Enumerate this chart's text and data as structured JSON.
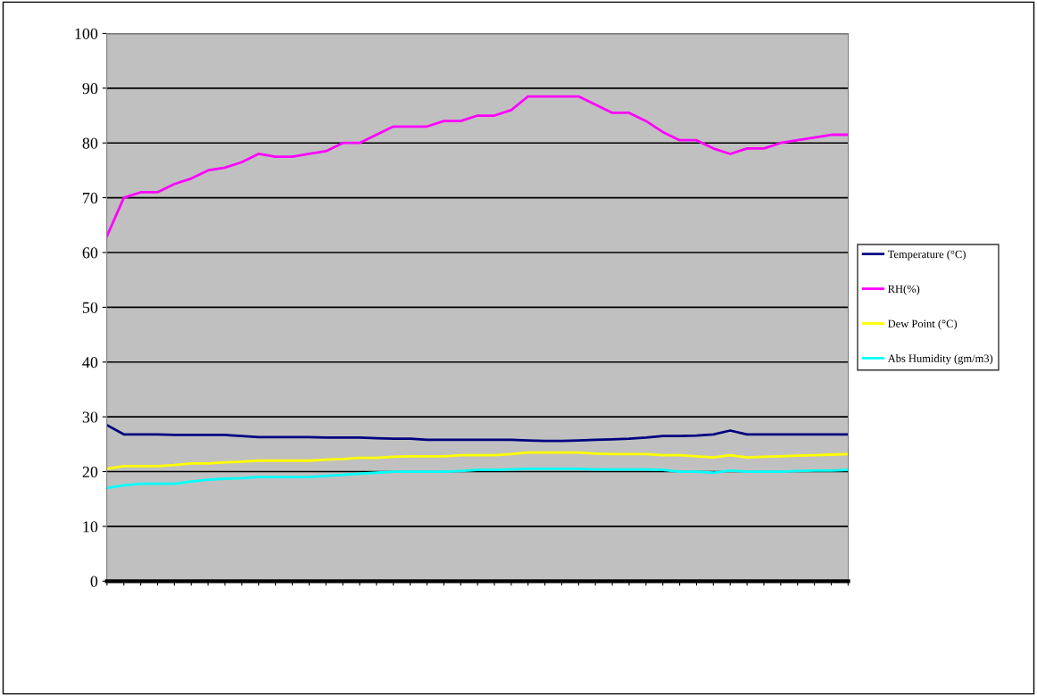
{
  "chart_data": {
    "type": "line",
    "categories": [
      null,
      null,
      null,
      null,
      null,
      null,
      null,
      null,
      null,
      null,
      null,
      null,
      null,
      null,
      null,
      null,
      null,
      null,
      null,
      null,
      null,
      null,
      null,
      null,
      null,
      null,
      null,
      null,
      null,
      null,
      null,
      null,
      null,
      null,
      null,
      null,
      null,
      null,
      null,
      null,
      null,
      null,
      null,
      null,
      null
    ],
    "series": [
      {
        "name": "Temperature (°C)",
        "color": "#000080",
        "values": [
          28.5,
          26.8,
          26.8,
          26.8,
          26.7,
          26.7,
          26.7,
          26.7,
          26.5,
          26.3,
          26.3,
          26.3,
          26.3,
          26.2,
          26.2,
          26.2,
          26.1,
          26,
          26,
          25.8,
          25.8,
          25.8,
          25.8,
          25.8,
          25.8,
          25.7,
          25.6,
          25.6,
          25.7,
          25.8,
          25.9,
          26,
          26.2,
          26.5,
          26.5,
          26.6,
          26.8,
          27.5,
          26.8,
          26.8,
          26.8,
          26.8,
          26.8,
          26.8,
          26.8
        ]
      },
      {
        "name": "RH(%)",
        "color": "#ff00ff",
        "values": [
          63,
          70,
          71,
          71,
          72.5,
          73.5,
          75,
          75.5,
          76.5,
          78,
          77.5,
          77.5,
          78,
          78.5,
          80,
          80,
          81.5,
          83,
          83,
          83,
          84,
          84,
          85,
          85,
          86,
          88.5,
          88.5,
          88.5,
          88.5,
          87,
          85.5,
          85.5,
          84,
          82,
          80.5,
          80.5,
          79,
          78,
          79,
          79,
          80,
          80.5,
          81,
          81.5,
          81.5
        ]
      },
      {
        "name": "Dew Point (°C)",
        "color": "#ffff00",
        "values": [
          20.5,
          21,
          21,
          21,
          21.2,
          21.5,
          21.5,
          21.7,
          21.8,
          22,
          22,
          22,
          22,
          22.2,
          22.3,
          22.5,
          22.5,
          22.7,
          22.8,
          22.8,
          22.8,
          23,
          23,
          23,
          23.2,
          23.5,
          23.5,
          23.5,
          23.5,
          23.3,
          23.2,
          23.2,
          23.2,
          23,
          23,
          22.8,
          22.6,
          23,
          22.6,
          22.7,
          22.8,
          22.9,
          23,
          23.1,
          23.2
        ]
      },
      {
        "name": "Abs Humidity (gm/m3)",
        "color": "#00ffff",
        "values": [
          17,
          17.5,
          17.8,
          17.8,
          17.8,
          18.2,
          18.5,
          18.7,
          18.8,
          19,
          19,
          19,
          19,
          19.2,
          19.4,
          19.6,
          19.8,
          20,
          20,
          20,
          20,
          20.1,
          20.3,
          20.3,
          20.4,
          20.5,
          20.5,
          20.5,
          20.5,
          20.4,
          20.4,
          20.4,
          20.4,
          20.3,
          20,
          20,
          19.8,
          20.2,
          20,
          20,
          20,
          20.1,
          20.2,
          20.2,
          20.3
        ]
      }
    ],
    "ylim": [
      0,
      100
    ],
    "yticks": [
      0,
      10,
      20,
      30,
      40,
      50,
      60,
      70,
      80,
      90,
      100
    ],
    "grid": "y",
    "legend": "right",
    "line_style": "solid"
  }
}
